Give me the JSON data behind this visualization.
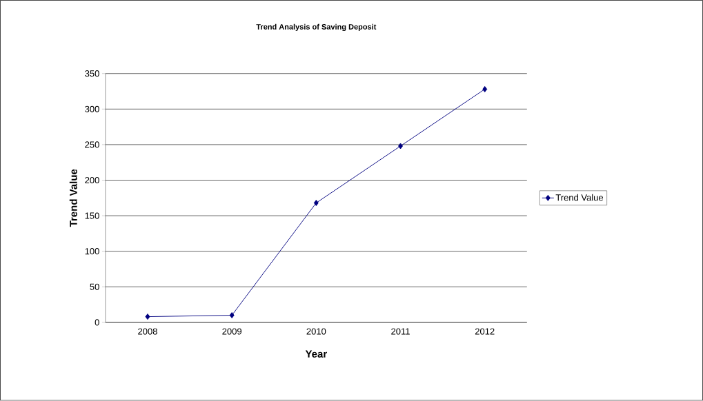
{
  "chart_data": {
    "type": "line",
    "title": "Trend  Analysis of Saving Deposit",
    "xlabel": "Year",
    "ylabel": "Trend Value",
    "categories": [
      "2008",
      "2009",
      "2010",
      "2011",
      "2012"
    ],
    "series": [
      {
        "name": "Trend  Value",
        "color": "#000080",
        "values": [
          8,
          10,
          168,
          248,
          328
        ]
      }
    ],
    "ylim": [
      0,
      350
    ],
    "yticks": [
      0,
      50,
      100,
      150,
      200,
      250,
      300,
      350
    ],
    "grid": "y",
    "legend": "right",
    "marker": "diamond",
    "line_style": "solid"
  }
}
